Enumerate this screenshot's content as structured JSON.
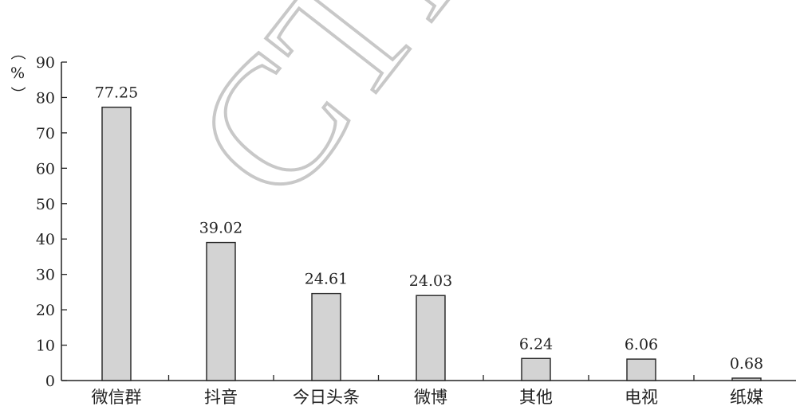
{
  "watermark": "CTP",
  "chart_data": {
    "type": "bar",
    "title": "",
    "xlabel": "",
    "ylabel": "（%）",
    "ylabel_parts": [
      "（",
      "%",
      "）"
    ],
    "ylim": [
      0,
      90
    ],
    "yticks": [
      0,
      10,
      20,
      30,
      40,
      50,
      60,
      70,
      80,
      90
    ],
    "categories": [
      "微信群",
      "抖音",
      "今日头条",
      "微博",
      "其他",
      "电视",
      "纸媒"
    ],
    "values": [
      77.25,
      39.02,
      24.61,
      24.03,
      6.24,
      6.06,
      0.68
    ],
    "data_labels": [
      "77.25",
      "39.02",
      "24.61",
      "24.03",
      "6.24",
      "6.06",
      "0.68"
    ],
    "bar_color": "#d3d3d3",
    "bar_edge_color": "#222222",
    "grid": false,
    "legend": "none"
  }
}
